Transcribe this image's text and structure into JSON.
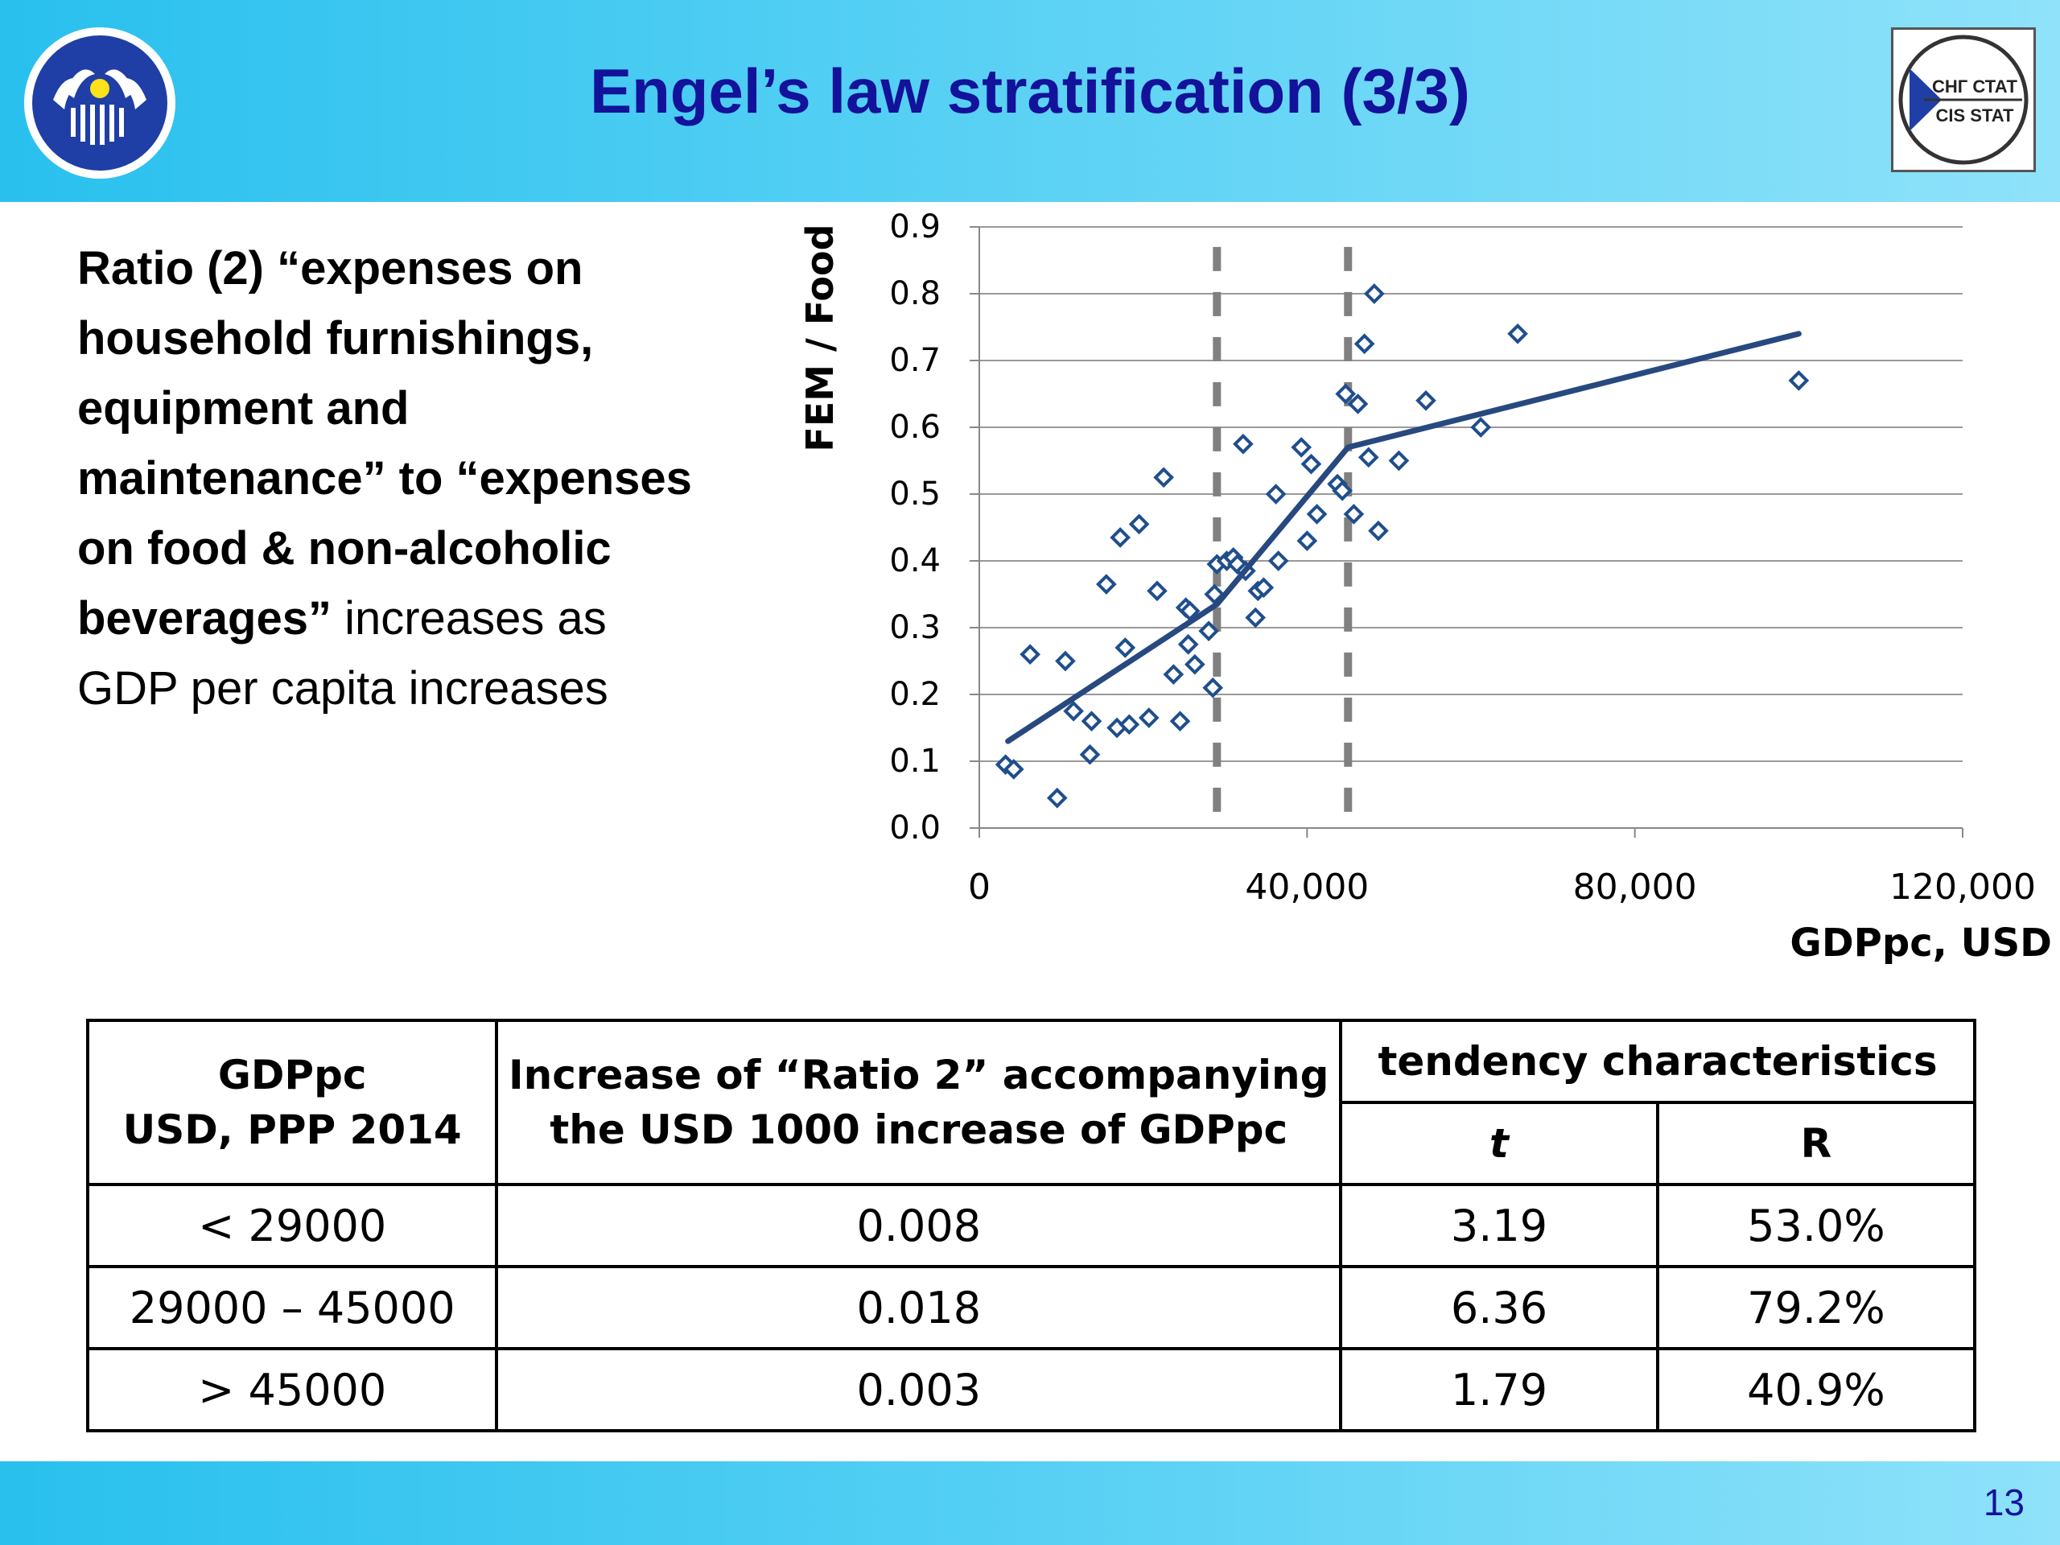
{
  "header": {
    "title": "Engel’s law stratification (3/3)",
    "logo_right_line1": "СНГ СТАТ",
    "logo_right_line2": "CIS STAT"
  },
  "description": {
    "bold": "Ratio (2) “expenses on household furnishings, equipment and maintenance” to “expenses on food & non-alcoholic beverages”",
    "normal": " increases as GDP per capita increases"
  },
  "chart_data": {
    "type": "scatter",
    "ylabel": "FEM / Food",
    "xlabel": "GDPpc, USD",
    "xlim": [
      0,
      120000
    ],
    "ylim": [
      0,
      0.9
    ],
    "x_ticks": [
      0,
      40000,
      80000,
      120000
    ],
    "x_tick_labels": [
      "0",
      "40,000",
      "80,000",
      "120,000"
    ],
    "y_ticks": [
      0,
      0.1,
      0.2,
      0.3,
      0.4,
      0.5,
      0.6,
      0.7,
      0.8,
      0.9
    ],
    "y_tick_labels": [
      "0.0",
      "0.1",
      "0.2",
      "0.3",
      "0.4",
      "0.5",
      "0.6",
      "0.7",
      "0.8",
      "0.9"
    ],
    "grid": true,
    "points": [
      [
        3200,
        0.095
      ],
      [
        4200,
        0.088
      ],
      [
        6200,
        0.26
      ],
      [
        9500,
        0.045
      ],
      [
        10500,
        0.25
      ],
      [
        11500,
        0.175
      ],
      [
        13500,
        0.11
      ],
      [
        13700,
        0.16
      ],
      [
        15500,
        0.365
      ],
      [
        16800,
        0.15
      ],
      [
        17200,
        0.435
      ],
      [
        17800,
        0.27
      ],
      [
        18300,
        0.155
      ],
      [
        19500,
        0.455
      ],
      [
        20700,
        0.165
      ],
      [
        21700,
        0.355
      ],
      [
        22500,
        0.525
      ],
      [
        23700,
        0.23
      ],
      [
        24500,
        0.16
      ],
      [
        25200,
        0.33
      ],
      [
        25500,
        0.275
      ],
      [
        25700,
        0.325
      ],
      [
        26300,
        0.245
      ],
      [
        28000,
        0.295
      ],
      [
        28500,
        0.21
      ],
      [
        28700,
        0.35
      ],
      [
        29000,
        0.395
      ],
      [
        30200,
        0.4
      ],
      [
        31000,
        0.405
      ],
      [
        31500,
        0.395
      ],
      [
        32200,
        0.575
      ],
      [
        32500,
        0.385
      ],
      [
        33700,
        0.315
      ],
      [
        34000,
        0.355
      ],
      [
        34700,
        0.36
      ],
      [
        36200,
        0.5
      ],
      [
        36500,
        0.4
      ],
      [
        39300,
        0.57
      ],
      [
        40000,
        0.43
      ],
      [
        40500,
        0.545
      ],
      [
        41200,
        0.47
      ],
      [
        43700,
        0.515
      ],
      [
        44300,
        0.505
      ],
      [
        44700,
        0.65
      ],
      [
        45700,
        0.47
      ],
      [
        46200,
        0.635
      ],
      [
        47000,
        0.725
      ],
      [
        47500,
        0.555
      ],
      [
        48200,
        0.8
      ],
      [
        48700,
        0.445
      ],
      [
        51200,
        0.55
      ],
      [
        54500,
        0.64
      ],
      [
        61200,
        0.6
      ],
      [
        65700,
        0.74
      ],
      [
        100000,
        0.67
      ]
    ],
    "trend_line": [
      [
        3500,
        0.13
      ],
      [
        29000,
        0.335
      ],
      [
        45000,
        0.57
      ],
      [
        100000,
        0.74
      ]
    ],
    "breakpoints": [
      29000,
      45000
    ]
  },
  "table": {
    "header": {
      "col1": "GDPpc\nUSD, PPP 2014",
      "col2": "Increase of “Ratio 2” accompanying\nthe USD 1000 increase of GDPpc",
      "group": "tendency characteristics",
      "t": "t",
      "r": "R"
    },
    "rows": [
      {
        "range": "< 29000",
        "increase": "0.008",
        "t": "3.19",
        "r": "53.0%"
      },
      {
        "range": "29000 – 45000",
        "increase": "0.018",
        "t": "6.36",
        "r": "79.2%"
      },
      {
        "range": "> 45000",
        "increase": "0.003",
        "t": "1.79",
        "r": "40.9%"
      }
    ]
  },
  "footer": {
    "page_number": "13"
  }
}
